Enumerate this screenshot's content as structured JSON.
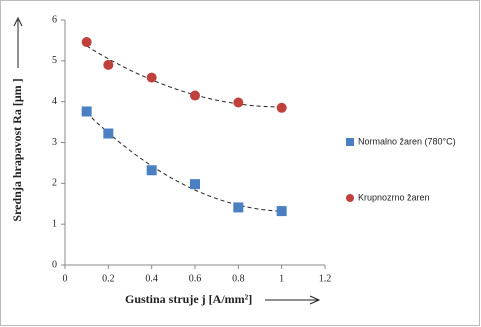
{
  "chart_data": {
    "type": "scatter",
    "x_label": "Gustina struje j [A/mm²]",
    "y_label": "Srednja hrapavost Ra [μm ]",
    "xlim": [
      0,
      1.2
    ],
    "xticks": [
      0,
      0.2,
      0.4,
      0.6,
      0.8,
      1,
      1.2
    ],
    "ylim": [
      0,
      6
    ],
    "yticks": [
      0,
      1,
      2,
      3,
      4,
      5,
      6
    ],
    "trendline": true,
    "series": [
      {
        "name": "Normalno žaren (780°C)",
        "color": "#4a7fc1",
        "marker": "square",
        "x": [
          0.1,
          0.2,
          0.4,
          0.6,
          0.8,
          1.0
        ],
        "values": [
          3.76,
          3.22,
          2.32,
          1.98,
          1.41,
          1.32
        ]
      },
      {
        "name": "Krupnozrno žaren",
        "color": "#c0403c",
        "marker": "circle",
        "x": [
          0.1,
          0.2,
          0.4,
          0.6,
          0.8,
          1.0
        ],
        "values": [
          5.46,
          4.9,
          4.59,
          4.15,
          3.98,
          3.85
        ]
      }
    ]
  }
}
